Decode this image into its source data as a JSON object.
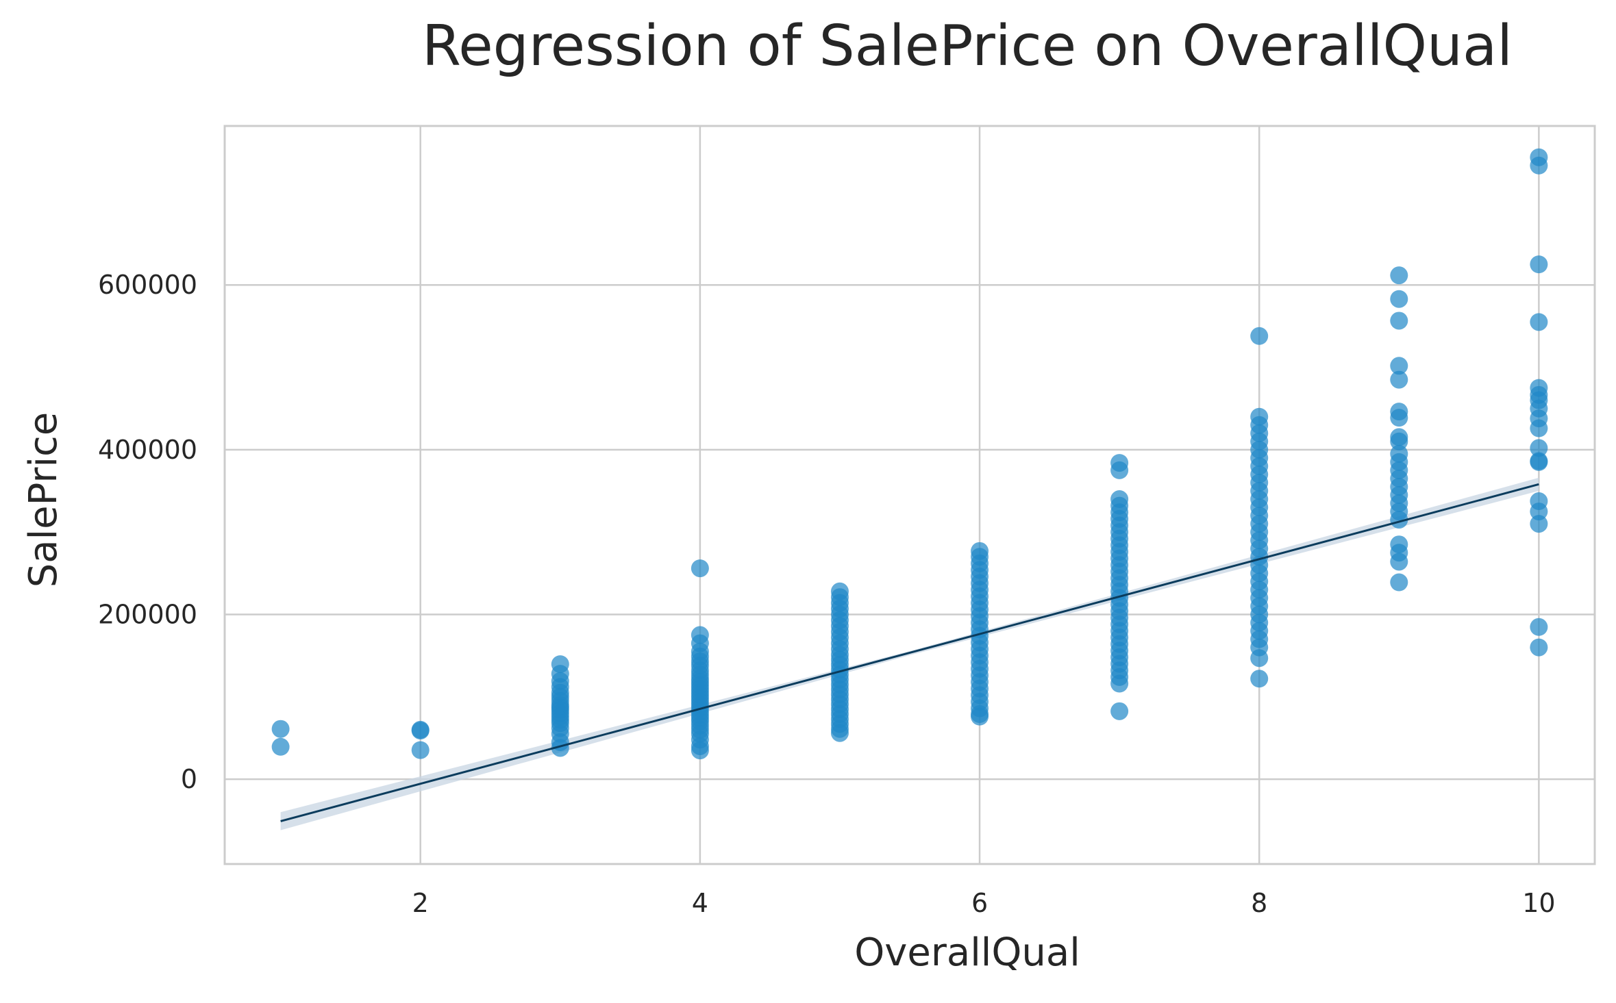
{
  "chart_data": {
    "type": "scatter",
    "title": "Regression of SalePrice on OverallQual",
    "xlabel": "OverallQual",
    "ylabel": "SalePrice",
    "xlim": [
      0.6,
      10.4
    ],
    "ylim": [
      -103000,
      793000
    ],
    "xticks": [
      2,
      4,
      6,
      8,
      10
    ],
    "yticks": [
      0,
      200000,
      400000,
      600000
    ],
    "xtick_labels": [
      "2",
      "4",
      "6",
      "8",
      "10"
    ],
    "ytick_labels": [
      "0",
      "200000",
      "400000",
      "600000"
    ],
    "grid": true,
    "legend": "none",
    "points": [
      {
        "x": 1,
        "y": 61000
      },
      {
        "x": 1,
        "y": 39300
      },
      {
        "x": 2,
        "y": 60000
      },
      {
        "x": 2,
        "y": 59000
      },
      {
        "x": 2,
        "y": 35300
      },
      {
        "x": 3,
        "y": 139600
      },
      {
        "x": 3,
        "y": 128000
      },
      {
        "x": 3,
        "y": 119000
      },
      {
        "x": 3,
        "y": 112000
      },
      {
        "x": 3,
        "y": 105000
      },
      {
        "x": 3,
        "y": 100000
      },
      {
        "x": 3,
        "y": 95000
      },
      {
        "x": 3,
        "y": 90000
      },
      {
        "x": 3,
        "y": 87000
      },
      {
        "x": 3,
        "y": 84000
      },
      {
        "x": 3,
        "y": 80000
      },
      {
        "x": 3,
        "y": 76000
      },
      {
        "x": 3,
        "y": 72000
      },
      {
        "x": 3,
        "y": 68000
      },
      {
        "x": 3,
        "y": 62000
      },
      {
        "x": 3,
        "y": 55000
      },
      {
        "x": 3,
        "y": 45000
      },
      {
        "x": 3,
        "y": 37900
      },
      {
        "x": 4,
        "y": 256000
      },
      {
        "x": 4,
        "y": 175000
      },
      {
        "x": 4,
        "y": 165000
      },
      {
        "x": 4,
        "y": 155000
      },
      {
        "x": 4,
        "y": 149000
      },
      {
        "x": 4,
        "y": 143000
      },
      {
        "x": 4,
        "y": 138000
      },
      {
        "x": 4,
        "y": 132000
      },
      {
        "x": 4,
        "y": 127000
      },
      {
        "x": 4,
        "y": 122000
      },
      {
        "x": 4,
        "y": 118000
      },
      {
        "x": 4,
        "y": 114000
      },
      {
        "x": 4,
        "y": 110000
      },
      {
        "x": 4,
        "y": 106000
      },
      {
        "x": 4,
        "y": 102000
      },
      {
        "x": 4,
        "y": 98000
      },
      {
        "x": 4,
        "y": 94000
      },
      {
        "x": 4,
        "y": 90000
      },
      {
        "x": 4,
        "y": 86000
      },
      {
        "x": 4,
        "y": 82000
      },
      {
        "x": 4,
        "y": 78000
      },
      {
        "x": 4,
        "y": 74000
      },
      {
        "x": 4,
        "y": 70000
      },
      {
        "x": 4,
        "y": 65000
      },
      {
        "x": 4,
        "y": 60000
      },
      {
        "x": 4,
        "y": 55000
      },
      {
        "x": 4,
        "y": 48000
      },
      {
        "x": 4,
        "y": 40000
      },
      {
        "x": 4,
        "y": 34900
      },
      {
        "x": 5,
        "y": 228000
      },
      {
        "x": 5,
        "y": 221000
      },
      {
        "x": 5,
        "y": 214000
      },
      {
        "x": 5,
        "y": 207000
      },
      {
        "x": 5,
        "y": 200000
      },
      {
        "x": 5,
        "y": 193000
      },
      {
        "x": 5,
        "y": 186000
      },
      {
        "x": 5,
        "y": 179000
      },
      {
        "x": 5,
        "y": 172000
      },
      {
        "x": 5,
        "y": 165000
      },
      {
        "x": 5,
        "y": 158000
      },
      {
        "x": 5,
        "y": 151000
      },
      {
        "x": 5,
        "y": 145000
      },
      {
        "x": 5,
        "y": 139000
      },
      {
        "x": 5,
        "y": 133000
      },
      {
        "x": 5,
        "y": 127000
      },
      {
        "x": 5,
        "y": 121000
      },
      {
        "x": 5,
        "y": 115000
      },
      {
        "x": 5,
        "y": 109000
      },
      {
        "x": 5,
        "y": 103000
      },
      {
        "x": 5,
        "y": 97000
      },
      {
        "x": 5,
        "y": 91000
      },
      {
        "x": 5,
        "y": 85000
      },
      {
        "x": 5,
        "y": 79000
      },
      {
        "x": 5,
        "y": 73000
      },
      {
        "x": 5,
        "y": 67000
      },
      {
        "x": 5,
        "y": 61000
      },
      {
        "x": 5,
        "y": 55993
      },
      {
        "x": 6,
        "y": 277000
      },
      {
        "x": 6,
        "y": 270000
      },
      {
        "x": 6,
        "y": 262000
      },
      {
        "x": 6,
        "y": 254000
      },
      {
        "x": 6,
        "y": 246000
      },
      {
        "x": 6,
        "y": 238000
      },
      {
        "x": 6,
        "y": 230000
      },
      {
        "x": 6,
        "y": 222000
      },
      {
        "x": 6,
        "y": 214000
      },
      {
        "x": 6,
        "y": 206000
      },
      {
        "x": 6,
        "y": 198000
      },
      {
        "x": 6,
        "y": 190000
      },
      {
        "x": 6,
        "y": 182000
      },
      {
        "x": 6,
        "y": 174000
      },
      {
        "x": 6,
        "y": 166000
      },
      {
        "x": 6,
        "y": 158000
      },
      {
        "x": 6,
        "y": 150000
      },
      {
        "x": 6,
        "y": 142000
      },
      {
        "x": 6,
        "y": 134000
      },
      {
        "x": 6,
        "y": 126000
      },
      {
        "x": 6,
        "y": 118000
      },
      {
        "x": 6,
        "y": 110000
      },
      {
        "x": 6,
        "y": 102000
      },
      {
        "x": 6,
        "y": 94000
      },
      {
        "x": 6,
        "y": 86000
      },
      {
        "x": 6,
        "y": 79000
      },
      {
        "x": 6,
        "y": 76000
      },
      {
        "x": 7,
        "y": 383970
      },
      {
        "x": 7,
        "y": 375000
      },
      {
        "x": 7,
        "y": 340000
      },
      {
        "x": 7,
        "y": 332000
      },
      {
        "x": 7,
        "y": 324000
      },
      {
        "x": 7,
        "y": 316000
      },
      {
        "x": 7,
        "y": 308000
      },
      {
        "x": 7,
        "y": 300000
      },
      {
        "x": 7,
        "y": 292000
      },
      {
        "x": 7,
        "y": 284000
      },
      {
        "x": 7,
        "y": 276000
      },
      {
        "x": 7,
        "y": 268000
      },
      {
        "x": 7,
        "y": 260000
      },
      {
        "x": 7,
        "y": 252000
      },
      {
        "x": 7,
        "y": 244000
      },
      {
        "x": 7,
        "y": 236000
      },
      {
        "x": 7,
        "y": 228000
      },
      {
        "x": 7,
        "y": 220000
      },
      {
        "x": 7,
        "y": 212000
      },
      {
        "x": 7,
        "y": 204000
      },
      {
        "x": 7,
        "y": 196000
      },
      {
        "x": 7,
        "y": 188000
      },
      {
        "x": 7,
        "y": 180000
      },
      {
        "x": 7,
        "y": 172000
      },
      {
        "x": 7,
        "y": 164000
      },
      {
        "x": 7,
        "y": 156000
      },
      {
        "x": 7,
        "y": 148000
      },
      {
        "x": 7,
        "y": 140000
      },
      {
        "x": 7,
        "y": 132000
      },
      {
        "x": 7,
        "y": 124000
      },
      {
        "x": 7,
        "y": 116000
      },
      {
        "x": 7,
        "y": 82500
      },
      {
        "x": 8,
        "y": 538000
      },
      {
        "x": 8,
        "y": 440000
      },
      {
        "x": 8,
        "y": 430000
      },
      {
        "x": 8,
        "y": 420000
      },
      {
        "x": 8,
        "y": 410000
      },
      {
        "x": 8,
        "y": 400000
      },
      {
        "x": 8,
        "y": 390000
      },
      {
        "x": 8,
        "y": 380000
      },
      {
        "x": 8,
        "y": 370000
      },
      {
        "x": 8,
        "y": 360000
      },
      {
        "x": 8,
        "y": 350000
      },
      {
        "x": 8,
        "y": 340000
      },
      {
        "x": 8,
        "y": 330000
      },
      {
        "x": 8,
        "y": 320000
      },
      {
        "x": 8,
        "y": 310000
      },
      {
        "x": 8,
        "y": 300000
      },
      {
        "x": 8,
        "y": 290000
      },
      {
        "x": 8,
        "y": 280000
      },
      {
        "x": 8,
        "y": 270000
      },
      {
        "x": 8,
        "y": 260000
      },
      {
        "x": 8,
        "y": 250000
      },
      {
        "x": 8,
        "y": 240000
      },
      {
        "x": 8,
        "y": 230000
      },
      {
        "x": 8,
        "y": 220000
      },
      {
        "x": 8,
        "y": 210000
      },
      {
        "x": 8,
        "y": 200000
      },
      {
        "x": 8,
        "y": 190000
      },
      {
        "x": 8,
        "y": 180000
      },
      {
        "x": 8,
        "y": 170000
      },
      {
        "x": 8,
        "y": 160000
      },
      {
        "x": 8,
        "y": 147000
      },
      {
        "x": 8,
        "y": 122000
      },
      {
        "x": 9,
        "y": 611657
      },
      {
        "x": 9,
        "y": 582933
      },
      {
        "x": 9,
        "y": 556581
      },
      {
        "x": 9,
        "y": 501837
      },
      {
        "x": 9,
        "y": 485000
      },
      {
        "x": 9,
        "y": 446261
      },
      {
        "x": 9,
        "y": 438780
      },
      {
        "x": 9,
        "y": 415298
      },
      {
        "x": 9,
        "y": 410000
      },
      {
        "x": 9,
        "y": 395000
      },
      {
        "x": 9,
        "y": 385000
      },
      {
        "x": 9,
        "y": 375000
      },
      {
        "x": 9,
        "y": 365000
      },
      {
        "x": 9,
        "y": 355000
      },
      {
        "x": 9,
        "y": 345000
      },
      {
        "x": 9,
        "y": 335000
      },
      {
        "x": 9,
        "y": 325000
      },
      {
        "x": 9,
        "y": 315000
      },
      {
        "x": 9,
        "y": 285000
      },
      {
        "x": 9,
        "y": 275000
      },
      {
        "x": 9,
        "y": 264000
      },
      {
        "x": 9,
        "y": 239000
      },
      {
        "x": 10,
        "y": 755000
      },
      {
        "x": 10,
        "y": 745000
      },
      {
        "x": 10,
        "y": 625000
      },
      {
        "x": 10,
        "y": 555000
      },
      {
        "x": 10,
        "y": 475000
      },
      {
        "x": 10,
        "y": 466500
      },
      {
        "x": 10,
        "y": 460000
      },
      {
        "x": 10,
        "y": 450000
      },
      {
        "x": 10,
        "y": 438000
      },
      {
        "x": 10,
        "y": 426000
      },
      {
        "x": 10,
        "y": 402000
      },
      {
        "x": 10,
        "y": 386250
      },
      {
        "x": 10,
        "y": 385000
      },
      {
        "x": 10,
        "y": 337500
      },
      {
        "x": 10,
        "y": 325000
      },
      {
        "x": 10,
        "y": 310000
      },
      {
        "x": 10,
        "y": 184750
      },
      {
        "x": 10,
        "y": 160000
      }
    ],
    "regression_line": {
      "x": [
        1,
        10
      ],
      "y": [
        -51000,
        358000
      ]
    },
    "confidence_band": {
      "x": [
        1,
        5.5,
        10
      ],
      "lower": [
        -62000,
        150500,
        350000
      ],
      "upper": [
        -40000,
        155500,
        366000
      ]
    },
    "colors": {
      "points": "#1f88c8",
      "line": "#0b3c5d",
      "band": "#c8d6e3",
      "grid": "#cccccc",
      "frame": "#cccccc"
    }
  }
}
